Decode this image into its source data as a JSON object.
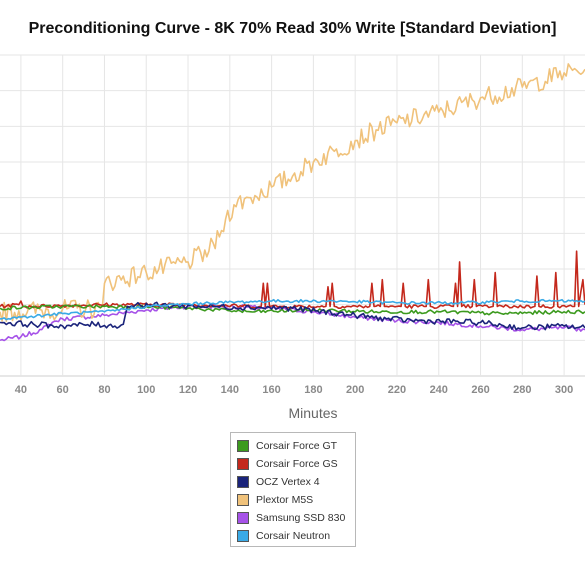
{
  "chart_data": {
    "type": "line",
    "title": "Preconditioning Curve - 8K 70% Read 30% Write [Standard Deviation]",
    "xlabel": "Minutes",
    "ylabel": "",
    "xlim": [
      30,
      310
    ],
    "ylim": [
      0,
      9
    ],
    "x_ticks": [
      40,
      60,
      80,
      100,
      120,
      140,
      160,
      180,
      200,
      220,
      240,
      260,
      280,
      300
    ],
    "grid": true,
    "legend_position": "bottom-center",
    "series": [
      {
        "name": "Corsair Force GT",
        "color": "#3c9a1e",
        "points": [
          [
            30,
            1.9
          ],
          [
            60,
            1.95
          ],
          [
            90,
            1.95
          ],
          [
            120,
            1.9
          ],
          [
            150,
            1.8
          ],
          [
            180,
            1.85
          ],
          [
            210,
            1.8
          ],
          [
            240,
            1.8
          ],
          [
            270,
            1.75
          ],
          [
            300,
            1.8
          ],
          [
            310,
            1.8
          ]
        ]
      },
      {
        "name": "Corsair Force GS",
        "color": "#c4281c",
        "points": [
          [
            30,
            1.95
          ],
          [
            39,
            2.0
          ],
          [
            40,
            2.1
          ],
          [
            41,
            1.95
          ],
          [
            80,
            2.0
          ],
          [
            120,
            2.0
          ],
          [
            155,
            1.95
          ],
          [
            156,
            2.6
          ],
          [
            157,
            1.95
          ],
          [
            158,
            2.6
          ],
          [
            159,
            1.95
          ],
          [
            186,
            1.95
          ],
          [
            187,
            2.5
          ],
          [
            188,
            1.95
          ],
          [
            189,
            2.6
          ],
          [
            190,
            1.95
          ],
          [
            207,
            1.95
          ],
          [
            208,
            2.6
          ],
          [
            209,
            1.95
          ],
          [
            212,
            1.95
          ],
          [
            213,
            2.7
          ],
          [
            214,
            1.95
          ],
          [
            222,
            1.95
          ],
          [
            223,
            2.6
          ],
          [
            224,
            1.95
          ],
          [
            234,
            1.95
          ],
          [
            235,
            2.7
          ],
          [
            236,
            1.95
          ],
          [
            247,
            1.95
          ],
          [
            248,
            2.6
          ],
          [
            249,
            1.95
          ],
          [
            250,
            3.2
          ],
          [
            251,
            1.95
          ],
          [
            256,
            1.95
          ],
          [
            257,
            2.7
          ],
          [
            258,
            1.95
          ],
          [
            266,
            1.95
          ],
          [
            267,
            2.9
          ],
          [
            268,
            1.95
          ],
          [
            286,
            1.95
          ],
          [
            287,
            2.8
          ],
          [
            288,
            1.95
          ],
          [
            295,
            1.95
          ],
          [
            296,
            2.9
          ],
          [
            297,
            1.95
          ],
          [
            305,
            1.95
          ],
          [
            306,
            3.5
          ],
          [
            307,
            1.95
          ],
          [
            309,
            2.7
          ],
          [
            310,
            2.0
          ]
        ]
      },
      {
        "name": "OCZ Vertex 4",
        "color": "#1a237a",
        "points": [
          [
            30,
            1.5
          ],
          [
            60,
            1.4
          ],
          [
            75,
            1.45
          ],
          [
            85,
            1.4
          ],
          [
            89,
            1.45
          ],
          [
            91,
            1.95
          ],
          [
            95,
            2.0
          ],
          [
            130,
            1.95
          ],
          [
            170,
            1.9
          ],
          [
            200,
            1.7
          ],
          [
            215,
            1.6
          ],
          [
            230,
            1.55
          ],
          [
            260,
            1.5
          ],
          [
            280,
            1.35
          ],
          [
            300,
            1.4
          ],
          [
            310,
            1.35
          ]
        ]
      },
      {
        "name": "Plextor M5S",
        "color": "#f0c27b",
        "points": [
          [
            30,
            1.8
          ],
          [
            78,
            1.9
          ],
          [
            79,
            1.95
          ],
          [
            80,
            2.6
          ],
          [
            100,
            2.9
          ],
          [
            120,
            3.2
          ],
          [
            130,
            3.5
          ],
          [
            135,
            3.9
          ],
          [
            138,
            4.4
          ],
          [
            142,
            4.8
          ],
          [
            150,
            5.0
          ],
          [
            160,
            5.3
          ],
          [
            170,
            5.6
          ],
          [
            180,
            6.0
          ],
          [
            190,
            6.3
          ],
          [
            200,
            6.6
          ],
          [
            210,
            6.9
          ],
          [
            220,
            7.1
          ],
          [
            240,
            7.4
          ],
          [
            260,
            7.8
          ],
          [
            280,
            8.1
          ],
          [
            300,
            8.5
          ],
          [
            310,
            8.6
          ]
        ]
      },
      {
        "name": "Samsung SSD 830",
        "color": "#a652e8",
        "points": [
          [
            30,
            1.0
          ],
          [
            40,
            1.1
          ],
          [
            50,
            1.3
          ],
          [
            55,
            1.5
          ],
          [
            60,
            1.6
          ],
          [
            80,
            1.7
          ],
          [
            100,
            1.85
          ],
          [
            120,
            1.95
          ],
          [
            140,
            1.95
          ],
          [
            160,
            1.9
          ],
          [
            180,
            1.8
          ],
          [
            200,
            1.65
          ],
          [
            220,
            1.55
          ],
          [
            240,
            1.5
          ],
          [
            260,
            1.4
          ],
          [
            280,
            1.3
          ],
          [
            300,
            1.35
          ],
          [
            310,
            1.3
          ]
        ]
      },
      {
        "name": "Corsair Neutron",
        "color": "#3aaae6",
        "points": [
          [
            30,
            1.6
          ],
          [
            40,
            1.65
          ],
          [
            60,
            1.75
          ],
          [
            80,
            1.8
          ],
          [
            100,
            1.95
          ],
          [
            130,
            2.05
          ],
          [
            160,
            2.1
          ],
          [
            190,
            2.1
          ],
          [
            220,
            2.05
          ],
          [
            250,
            2.05
          ],
          [
            280,
            2.1
          ],
          [
            310,
            2.1
          ]
        ]
      }
    ]
  }
}
